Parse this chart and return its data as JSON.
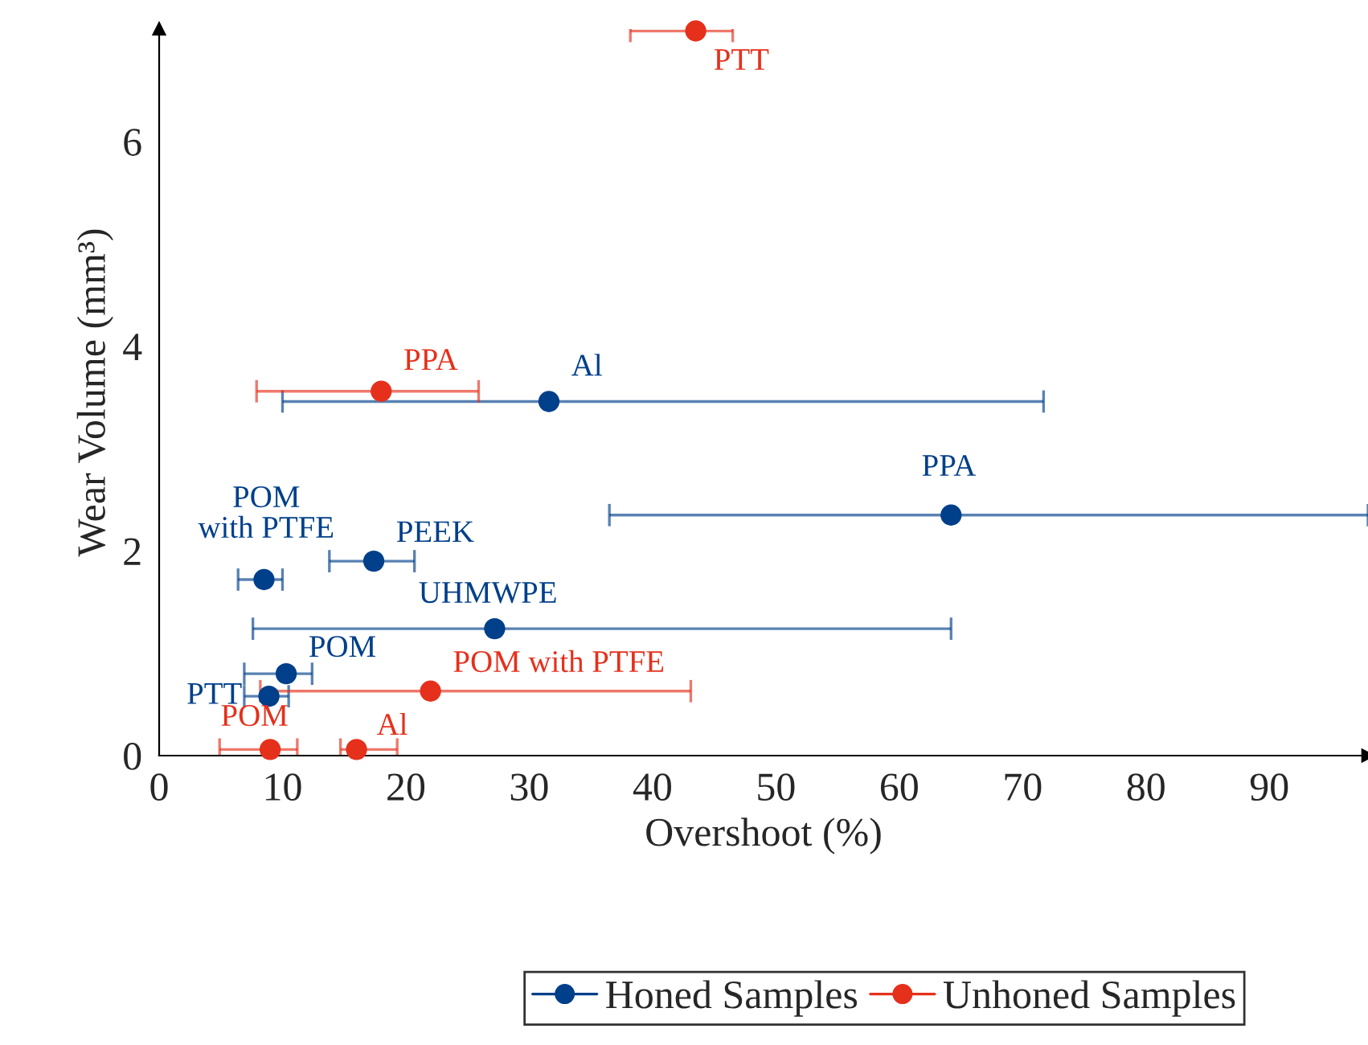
{
  "chart_data": {
    "type": "scatter",
    "xlabel": "Overshoot (%)",
    "ylabel": "Wear Volume (mm³)",
    "xlim": [
      0,
      98
    ],
    "ylim": [
      0,
      7.1
    ],
    "xticks": [
      0,
      10,
      20,
      30,
      40,
      50,
      60,
      70,
      80,
      90
    ],
    "yticks": [
      0,
      2,
      4,
      6
    ],
    "grid": false,
    "legend": "bottom",
    "marker": "circle",
    "series": [
      {
        "name": "Honed Samples",
        "color": "#003f8a",
        "x": [
          31.6,
          64.2,
          8.5,
          17.4,
          27.2,
          10.3,
          8.9
        ],
        "values": [
          3.46,
          2.35,
          1.72,
          1.9,
          1.24,
          0.8,
          0.58
        ],
        "xerrors": [
          [
            10.0,
            71.7
          ],
          [
            36.5,
            98
          ],
          [
            6.4,
            10.0
          ],
          [
            13.8,
            20.7
          ],
          [
            7.6,
            64.2
          ],
          [
            6.9,
            12.4
          ],
          [
            6.9,
            10.5
          ]
        ],
        "value_labels": [
          "Al",
          "PPA",
          "POM\nwith PTFE",
          "PEEK",
          "UHMWPE",
          "POM",
          "PTT"
        ]
      },
      {
        "name": "Unhoned Samples",
        "color": "#e5301c",
        "x": [
          43.5,
          18.0,
          22.0,
          9.0,
          16.0
        ],
        "values": [
          7.08,
          3.56,
          0.63,
          0.06,
          0.06
        ],
        "xerrors": [
          [
            38.2,
            46.5
          ],
          [
            7.9,
            25.9
          ],
          [
            8.2,
            43.1
          ],
          [
            4.9,
            11.2
          ],
          [
            14.7,
            19.3
          ]
        ],
        "value_labels": [
          "PTT",
          "PPA",
          "POM with PTFE",
          "POM",
          "Al"
        ]
      }
    ]
  }
}
